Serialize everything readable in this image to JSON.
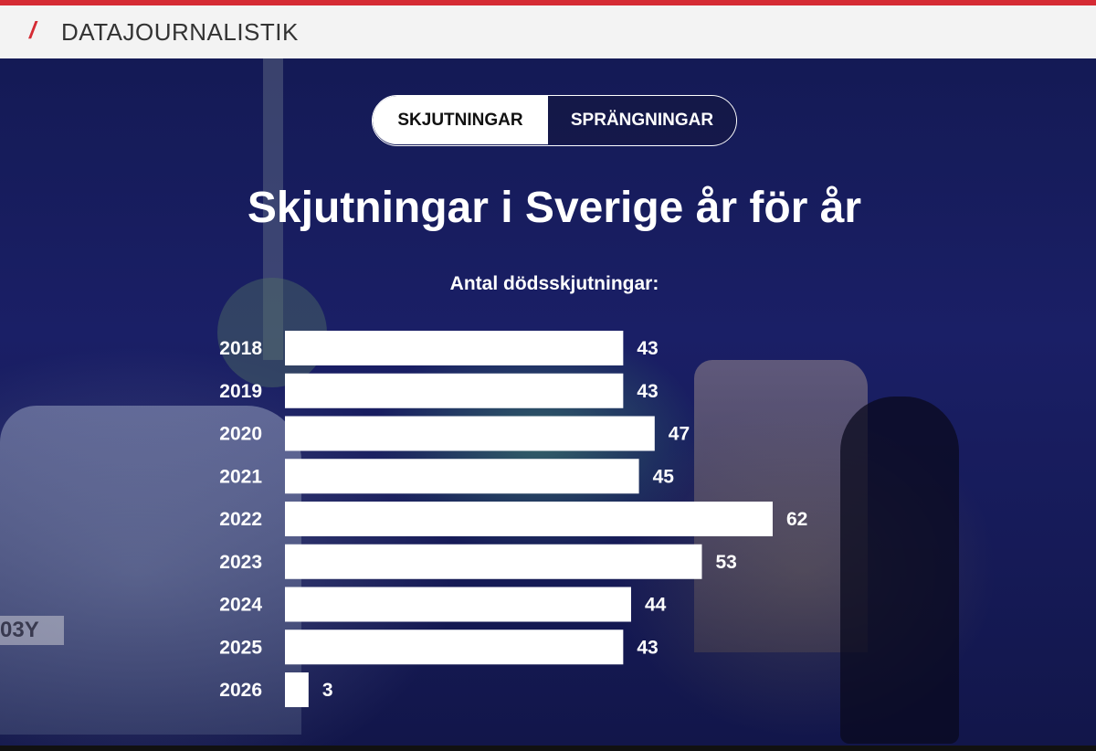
{
  "header": {
    "section_title": "DATAJOURNALISTIK"
  },
  "toggle": {
    "options": [
      "SKJUTNINGAR",
      "SPRÄNGNINGAR"
    ],
    "active": "SKJUTNINGAR"
  },
  "colors": {
    "accent": "#d52b34",
    "bar": "#ffffff",
    "text": "#ffffff"
  },
  "background": {
    "plate_text": "03Y"
  },
  "chart_data": {
    "type": "bar",
    "orientation": "horizontal",
    "title": "Skjutningar i Sverige år för år",
    "subtitle": "Antal dödsskjutningar:",
    "categories": [
      "2018",
      "2019",
      "2020",
      "2021",
      "2022",
      "2023",
      "2024",
      "2025",
      "2026"
    ],
    "values": [
      43,
      43,
      47,
      45,
      62,
      53,
      44,
      43,
      3
    ],
    "xlim": [
      0,
      62
    ],
    "grid": false,
    "data_labels": true
  }
}
